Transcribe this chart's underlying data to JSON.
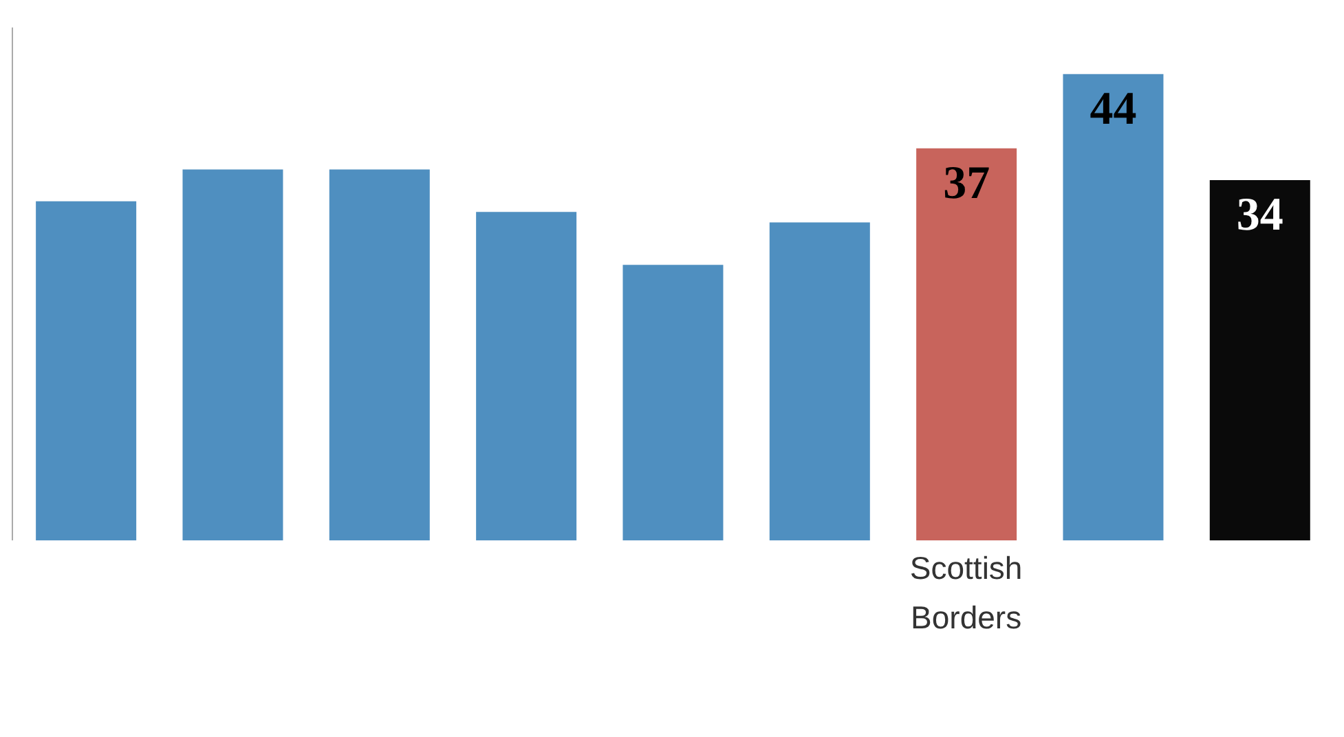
{
  "chart_data": {
    "type": "bar",
    "categories": [
      null,
      null,
      null,
      null,
      null,
      null,
      "Scottish Borders",
      null,
      null
    ],
    "values": [
      32,
      35,
      35,
      31,
      26,
      30,
      37,
      44,
      34
    ],
    "colors": [
      "#4f8fc0",
      "#4f8fc0",
      "#4f8fc0",
      "#4f8fc0",
      "#4f8fc0",
      "#4f8fc0",
      "#c8645c",
      "#4f8fc0",
      "#0a0a0a"
    ],
    "value_labels": [
      null,
      null,
      null,
      null,
      null,
      null,
      "37",
      "44",
      "34"
    ],
    "grid": false,
    "legend": false
  }
}
